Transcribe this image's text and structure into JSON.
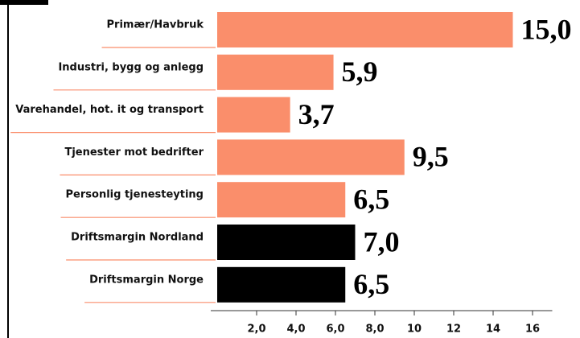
{
  "chart_data": {
    "type": "hbar",
    "categories": [
      "Primær/Havbruk",
      "Industri, bygg og anlegg",
      "Varehandel, hot. it og transport",
      "Tjenester mot bedrifter",
      "Personlig tjenesteyting",
      "Driftsmargin Nordland",
      "Driftsmargin Norge"
    ],
    "values": [
      15.0,
      5.9,
      3.7,
      9.5,
      6.5,
      7.0,
      6.5
    ],
    "value_labels": [
      "15,0",
      "5,9",
      "3,7",
      "9,5",
      "6,5",
      "7,0",
      "6,5"
    ],
    "colors": [
      "#fa8e6b",
      "#fa8e6b",
      "#fa8e6b",
      "#fa8e6b",
      "#fa8e6b",
      "#000000",
      "#000000"
    ],
    "xlim": [
      0,
      17
    ],
    "xticks": [
      {
        "value": 2,
        "label": "2,0"
      },
      {
        "value": 4,
        "label": "4,0"
      },
      {
        "value": 6,
        "label": "6,0"
      },
      {
        "value": 8,
        "label": "8,0"
      },
      10,
      12,
      14,
      16
    ]
  }
}
